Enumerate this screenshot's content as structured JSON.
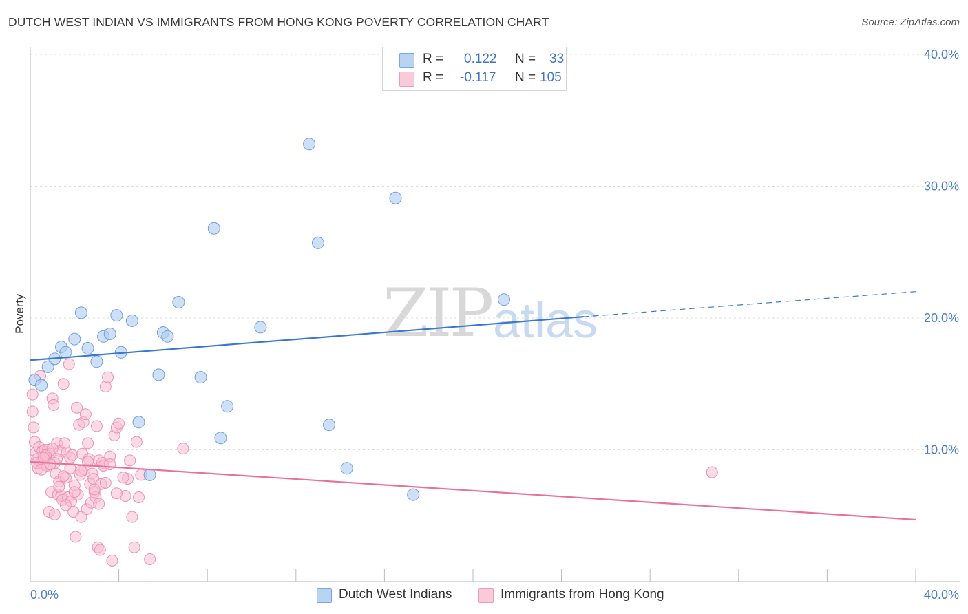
{
  "header": {
    "title": "DUTCH WEST INDIAN VS IMMIGRANTS FROM HONG KONG POVERTY CORRELATION CHART",
    "source": "Source: ZipAtlas.com"
  },
  "watermark": {
    "zip": "ZIP",
    "atlas": "atlas"
  },
  "legend": {
    "rows": [
      {
        "r_label": "R =",
        "r_value": "0.122",
        "n_label": "N =",
        "n_value": "33"
      },
      {
        "r_label": "R =",
        "r_value": "-0.117",
        "n_label": "N =",
        "n_value": "105"
      }
    ]
  },
  "bottom_legend": [
    {
      "label": "Dutch West Indians"
    },
    {
      "label": "Immigrants from Hong Kong"
    }
  ],
  "colors": {
    "blue_fill": "#aecbf0",
    "blue_stroke": "#6e9ee0",
    "blue_line": "#3a78d0",
    "pink_fill": "#f7c0d2",
    "pink_stroke": "#ee8fb0",
    "pink_line": "#e8709a",
    "grid": "#dcdcdc",
    "axis": "#bbbbbb"
  },
  "chart_data": {
    "type": "scatter",
    "title": "DUTCH WEST INDIAN VS IMMIGRANTS FROM HONG KONG POVERTY CORRELATION CHART",
    "xlabel": "",
    "ylabel": "Poverty",
    "xlim": [
      0,
      40
    ],
    "ylim": [
      0,
      40
    ],
    "x_tick_labels": [
      "0.0%",
      "40.0%"
    ],
    "y_ticks": [
      10,
      20,
      30,
      40
    ],
    "y_tick_labels": [
      "10.0%",
      "20.0%",
      "30.0%",
      "40.0%"
    ],
    "grid": true,
    "series": [
      {
        "name": "Dutch West Indians",
        "color": "blue",
        "trend": {
          "x0": 0,
          "y0": 16.8,
          "x1": 25,
          "y1": 20.1,
          "dash_to_x": 40,
          "dash_to_y": 22.0
        },
        "points": [
          [
            0.2,
            15.3
          ],
          [
            0.5,
            14.9
          ],
          [
            0.8,
            16.3
          ],
          [
            1.1,
            16.9
          ],
          [
            1.4,
            17.8
          ],
          [
            1.6,
            17.4
          ],
          [
            2.0,
            18.4
          ],
          [
            2.3,
            20.4
          ],
          [
            2.6,
            17.7
          ],
          [
            3.0,
            16.7
          ],
          [
            3.3,
            18.6
          ],
          [
            3.6,
            18.8
          ],
          [
            3.9,
            20.2
          ],
          [
            4.1,
            17.4
          ],
          [
            4.6,
            19.8
          ],
          [
            4.9,
            12.1
          ],
          [
            5.4,
            8.1
          ],
          [
            5.8,
            15.7
          ],
          [
            6.0,
            18.9
          ],
          [
            6.2,
            18.6
          ],
          [
            6.7,
            21.2
          ],
          [
            7.7,
            15.5
          ],
          [
            8.3,
            26.8
          ],
          [
            8.6,
            10.9
          ],
          [
            8.9,
            13.3
          ],
          [
            10.4,
            19.3
          ],
          [
            12.6,
            33.2
          ],
          [
            13.0,
            25.7
          ],
          [
            13.5,
            11.9
          ],
          [
            14.3,
            8.6
          ],
          [
            16.5,
            29.1
          ],
          [
            17.3,
            6.6
          ],
          [
            21.4,
            21.4
          ]
        ]
      },
      {
        "name": "Immigrants from Hong Kong",
        "color": "pink",
        "trend": {
          "x0": 0,
          "y0": 9.1,
          "x1": 40,
          "y1": 4.7
        },
        "points": [
          [
            0.1,
            14.2
          ],
          [
            0.1,
            12.9
          ],
          [
            0.15,
            11.7
          ],
          [
            0.2,
            10.6
          ],
          [
            0.25,
            9.8
          ],
          [
            0.3,
            9.3
          ],
          [
            0.35,
            8.6
          ],
          [
            0.4,
            10.2
          ],
          [
            0.45,
            15.6
          ],
          [
            0.5,
            9.0
          ],
          [
            0.55,
            9.9
          ],
          [
            0.6,
            8.9
          ],
          [
            0.65,
            10.0
          ],
          [
            0.7,
            9.5
          ],
          [
            0.75,
            8.8
          ],
          [
            0.8,
            10.0
          ],
          [
            0.85,
            5.3
          ],
          [
            0.9,
            9.7
          ],
          [
            0.95,
            6.8
          ],
          [
            1.0,
            13.9
          ],
          [
            1.05,
            13.4
          ],
          [
            1.1,
            5.1
          ],
          [
            1.15,
            8.2
          ],
          [
            1.2,
            10.5
          ],
          [
            1.25,
            6.6
          ],
          [
            1.3,
            7.6
          ],
          [
            1.35,
            9.9
          ],
          [
            1.4,
            6.5
          ],
          [
            1.45,
            6.2
          ],
          [
            1.5,
            15.0
          ],
          [
            1.55,
            10.5
          ],
          [
            1.6,
            7.9
          ],
          [
            1.65,
            9.8
          ],
          [
            1.7,
            6.4
          ],
          [
            1.75,
            16.5
          ],
          [
            1.8,
            9.4
          ],
          [
            1.85,
            6.1
          ],
          [
            1.9,
            9.6
          ],
          [
            1.95,
            5.3
          ],
          [
            2.0,
            7.3
          ],
          [
            2.05,
            3.4
          ],
          [
            2.1,
            13.2
          ],
          [
            2.15,
            6.6
          ],
          [
            2.2,
            11.9
          ],
          [
            2.25,
            8.1
          ],
          [
            2.3,
            4.9
          ],
          [
            2.35,
            9.7
          ],
          [
            2.4,
            12.1
          ],
          [
            2.45,
            8.5
          ],
          [
            2.5,
            12.7
          ],
          [
            2.55,
            5.5
          ],
          [
            2.6,
            10.5
          ],
          [
            2.65,
            9.3
          ],
          [
            2.7,
            7.4
          ],
          [
            2.75,
            6.0
          ],
          [
            2.8,
            8.2
          ],
          [
            2.85,
            7.8
          ],
          [
            2.9,
            6.8
          ],
          [
            2.95,
            6.4
          ],
          [
            3.0,
            11.8
          ],
          [
            3.05,
            2.6
          ],
          [
            3.1,
            9.2
          ],
          [
            3.15,
            2.4
          ],
          [
            3.2,
            7.4
          ],
          [
            3.25,
            9.0
          ],
          [
            3.3,
            8.8
          ],
          [
            3.4,
            14.8
          ],
          [
            3.5,
            15.5
          ],
          [
            3.6,
            9.5
          ],
          [
            3.7,
            1.6
          ],
          [
            3.8,
            11.1
          ],
          [
            3.9,
            11.7
          ],
          [
            4.0,
            12.0
          ],
          [
            4.3,
            6.5
          ],
          [
            4.4,
            7.8
          ],
          [
            4.5,
            9.2
          ],
          [
            4.6,
            4.9
          ],
          [
            4.7,
            2.6
          ],
          [
            4.8,
            10.6
          ],
          [
            4.9,
            6.4
          ],
          [
            5.0,
            8.1
          ],
          [
            5.4,
            1.7
          ],
          [
            6.9,
            10.1
          ],
          [
            0.3,
            9.0
          ],
          [
            0.5,
            8.5
          ],
          [
            0.7,
            9.6
          ],
          [
            1.0,
            10.1
          ],
          [
            1.2,
            9.3
          ],
          [
            1.5,
            8.0
          ],
          [
            1.8,
            8.6
          ],
          [
            2.0,
            6.8
          ],
          [
            2.3,
            8.4
          ],
          [
            2.6,
            9.1
          ],
          [
            2.9,
            7.0
          ],
          [
            3.1,
            5.9
          ],
          [
            3.4,
            7.5
          ],
          [
            3.6,
            8.9
          ],
          [
            3.9,
            6.7
          ],
          [
            4.2,
            7.9
          ],
          [
            1.1,
            9.0
          ],
          [
            1.3,
            7.2
          ],
          [
            1.6,
            5.8
          ],
          [
            0.9,
            8.9
          ],
          [
            0.6,
            9.4
          ],
          [
            30.8,
            8.3
          ]
        ]
      }
    ]
  }
}
